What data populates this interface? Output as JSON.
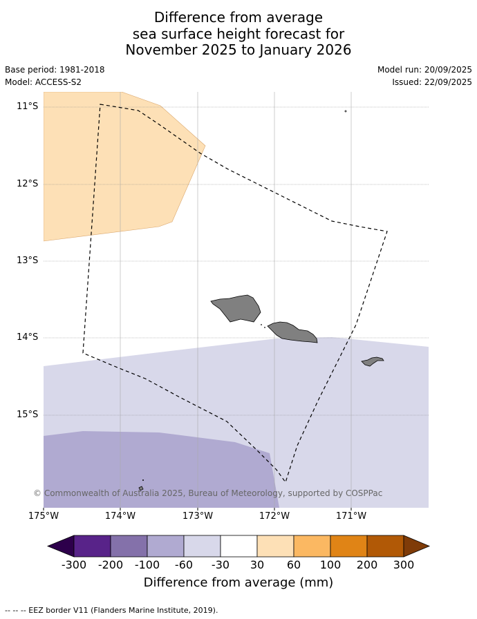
{
  "title": {
    "line1": "Difference from average",
    "line2": "sea surface height forecast for",
    "line3": "November 2025 to January 2026"
  },
  "meta": {
    "base_period": "Base period: 1981-2018",
    "model": "Model: ACCESS-S2",
    "model_run": "Model run: 20/09/2025",
    "issued": "Issued: 22/09/2025"
  },
  "map": {
    "lon_range": [
      -175.0,
      -170.0
    ],
    "lat_range": [
      -16.2,
      -10.8
    ],
    "lat_labels": [
      "11°S",
      "12°S",
      "13°S",
      "14°S",
      "15°S"
    ],
    "lon_labels": [
      "175°W",
      "174°W",
      "173°W",
      "172°W",
      "171°W"
    ],
    "regions": [
      {
        "name": "positive-anomaly-30-60",
        "color": "#fde0b6",
        "category": "30 to 60"
      },
      {
        "name": "negative-anomaly-60-30",
        "color": "#d8d8ea",
        "category": "-60 to -30"
      },
      {
        "name": "negative-anomaly-100-60",
        "color": "#b0aad1",
        "category": "-100 to -60"
      }
    ],
    "land": [
      {
        "name": "Savai'i",
        "color": "#808080"
      },
      {
        "name": "Upolu",
        "color": "#808080"
      },
      {
        "name": "Tutuila",
        "color": "#808080"
      }
    ],
    "copyright": "© Commonwealth of Australia 2025, Bureau of Meteorology, supported by COSPPac"
  },
  "colorbar": {
    "title": "Difference from average (mm)",
    "labels": [
      "-300",
      "-200",
      "-100",
      "-60",
      "-30",
      "30",
      "60",
      "100",
      "200",
      "300"
    ],
    "colors": [
      "#582389",
      "#8471aa",
      "#b0aad1",
      "#d8d8ea",
      "#ffffff",
      "#fde0b6",
      "#fbb862",
      "#e08416",
      "#b15906"
    ],
    "under_color": "#2d004b",
    "over_color": "#7f3b08"
  },
  "footnote": "-- -- -- EEZ border V11 (Flanders Marine Institute, 2019)."
}
